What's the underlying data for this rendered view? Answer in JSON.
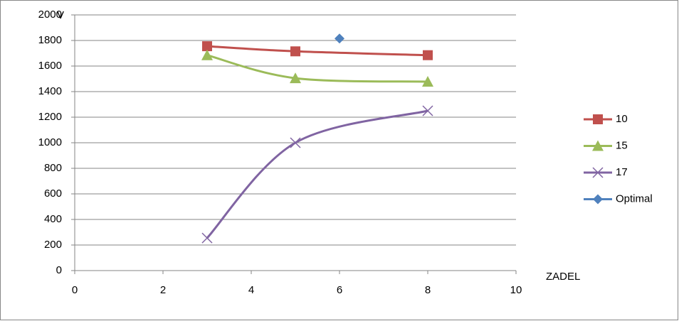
{
  "chart_data": {
    "type": "scatter",
    "x_label": "ZADEL",
    "y_label": "V",
    "xlim": [
      0,
      10
    ],
    "xticks": [
      0,
      2,
      4,
      6,
      8,
      10
    ],
    "ylim": [
      0,
      2000
    ],
    "yticks": [
      0,
      200,
      400,
      600,
      800,
      1000,
      1200,
      1400,
      1600,
      1800,
      2000
    ],
    "grid": true,
    "smooth": true,
    "legend": "right",
    "series": [
      {
        "name": "10",
        "color": "#c0504d",
        "marker": "square",
        "x": [
          3,
          5,
          8
        ],
        "values": [
          1755,
          1715,
          1685
        ]
      },
      {
        "name": "15",
        "color": "#9bbb59",
        "marker": "triangle",
        "x": [
          3,
          5,
          8
        ],
        "values": [
          1685,
          1505,
          1478
        ]
      },
      {
        "name": "17",
        "color": "#8064a2",
        "marker": "x",
        "x": [
          3,
          5,
          8
        ],
        "values": [
          255,
          1000,
          1250
        ]
      },
      {
        "name": "Optimal",
        "color": "#4f81bd",
        "marker": "diamond",
        "x": [
          6
        ],
        "values": [
          1815
        ]
      }
    ]
  }
}
